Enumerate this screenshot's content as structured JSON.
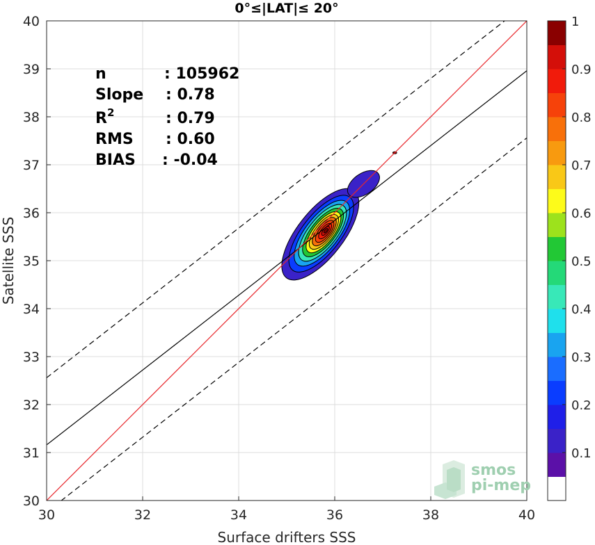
{
  "chart_data": {
    "type": "contour",
    "title": "0°≤|LAT|≤ 20°",
    "xlabel": "Surface drifters SSS",
    "ylabel": "Satellite SSS",
    "xlim": [
      30,
      40
    ],
    "ylim": [
      30,
      40
    ],
    "xticks": [
      30,
      32,
      34,
      36,
      38,
      40
    ],
    "yticks": [
      30,
      31,
      32,
      33,
      34,
      35,
      36,
      37,
      38,
      39,
      40
    ],
    "grid": true,
    "stats": [
      {
        "label": "n",
        "sep": ":",
        "value": "105962"
      },
      {
        "label": "Slope",
        "sep": ":",
        "value": "0.78"
      },
      {
        "label": "R",
        "sup": "2",
        "sep": ":",
        "value": "0.79"
      },
      {
        "label": "RMS",
        "sep": ":",
        "value": "0.60"
      },
      {
        "label": "BIAS",
        "sep": ":",
        "value": "-0.04"
      }
    ],
    "lines": {
      "identity": {
        "slope": 1,
        "intercept": 0,
        "color": "#e8262b"
      },
      "regression": {
        "slope": 0.78,
        "intercept": 7.76,
        "color": "#000000"
      },
      "upper_bound": {
        "slope": 0.78,
        "intercept": 9.16,
        "style": "dashed"
      },
      "lower_bound": {
        "slope": 0.78,
        "intercept": 6.36,
        "style": "dashed"
      }
    },
    "density_center": {
      "x": 35.7,
      "y": 35.55
    },
    "colorbar": {
      "ticks": [
        0.1,
        0.2,
        0.3,
        0.4,
        0.5,
        0.6,
        0.7,
        0.8,
        0.9,
        1
      ],
      "colors": [
        "#ffffff",
        "#5b10a8",
        "#3a22c8",
        "#1f1fe8",
        "#0a3dff",
        "#1a6dff",
        "#19a4f0",
        "#1fe0ec",
        "#38e8b8",
        "#24d978",
        "#22c835",
        "#9de21c",
        "#fdfb1a",
        "#f9c817",
        "#f89a0f",
        "#f8700a",
        "#f6420a",
        "#f11b0b",
        "#d40f09",
        "#8a0000"
      ]
    }
  },
  "logo": {
    "line1": "smos",
    "line2": "pi-mep"
  }
}
